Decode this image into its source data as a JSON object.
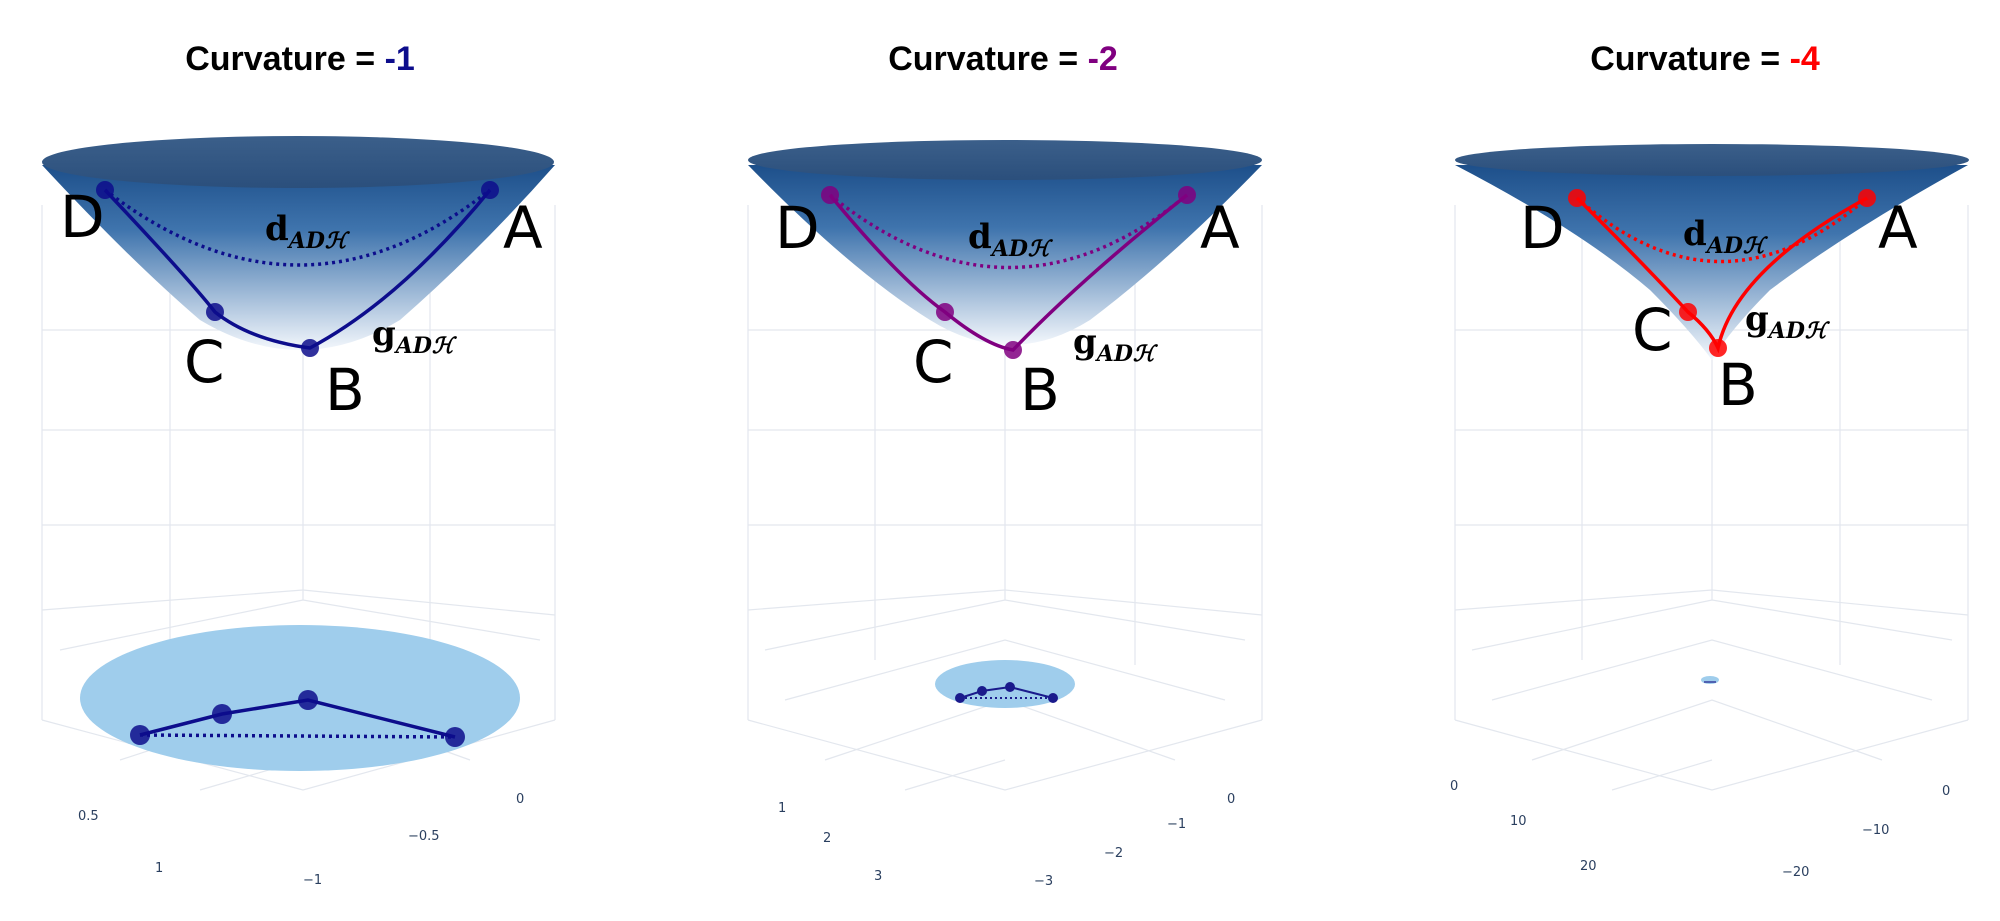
{
  "panels": [
    {
      "title_prefix": "Curvature = ",
      "curvature": "-1",
      "color": "#0d0d8c",
      "points": [
        "D",
        "A",
        "C",
        "B"
      ],
      "geodesic_label": "g",
      "distance_label": "d",
      "label_sub": "ADℋ",
      "x_ticks": [
        "0.5",
        "1"
      ],
      "y_ticks": [
        "0",
        "−0.5",
        "−1"
      ]
    },
    {
      "title_prefix": "Curvature = ",
      "curvature": "-2",
      "color": "#800080",
      "points": [
        "D",
        "A",
        "C",
        "B"
      ],
      "geodesic_label": "g",
      "distance_label": "d",
      "label_sub": "ADℋ",
      "x_ticks": [
        "1",
        "2",
        "3"
      ],
      "y_ticks": [
        "0",
        "−1",
        "−2",
        "−3"
      ]
    },
    {
      "title_prefix": "Curvature = ",
      "curvature": "-4",
      "color": "#ff0000",
      "points": [
        "D",
        "A",
        "C",
        "B"
      ],
      "geodesic_label": "g",
      "distance_label": "d",
      "label_sub": "ADℋ",
      "x_ticks": [
        "0",
        "10",
        "20"
      ],
      "y_ticks": [
        "0",
        "−10",
        "−20"
      ]
    }
  ],
  "colors": {
    "surface_top": "#2c5a8e",
    "surface_bottom": "#eef3fa",
    "disk": "#9fcdec",
    "grid": "#e3e7ee",
    "tick_text": "#2a3f5f"
  }
}
